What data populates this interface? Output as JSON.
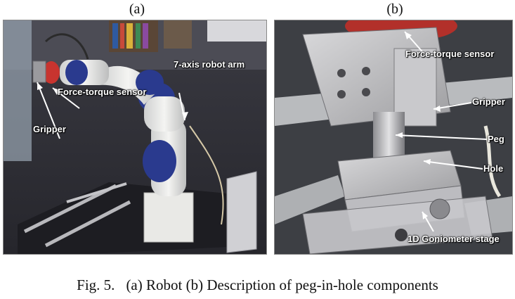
{
  "panel_a": {
    "letter": "(a)",
    "callouts": {
      "robot_arm": "7-axis robot arm",
      "force_torque": "Force-torque sensor",
      "gripper": "Gripper"
    }
  },
  "panel_b": {
    "letter": "(b)",
    "callouts": {
      "force_torque": "Force-torque sensor",
      "gripper": "Gripper",
      "peg": "Peg",
      "hole": "Hole",
      "goniometer": "1D Goniometer stage"
    }
  },
  "caption": {
    "label": "Fig. 5.",
    "text": "(a) Robot (b) Description of peg-in-hole components"
  }
}
